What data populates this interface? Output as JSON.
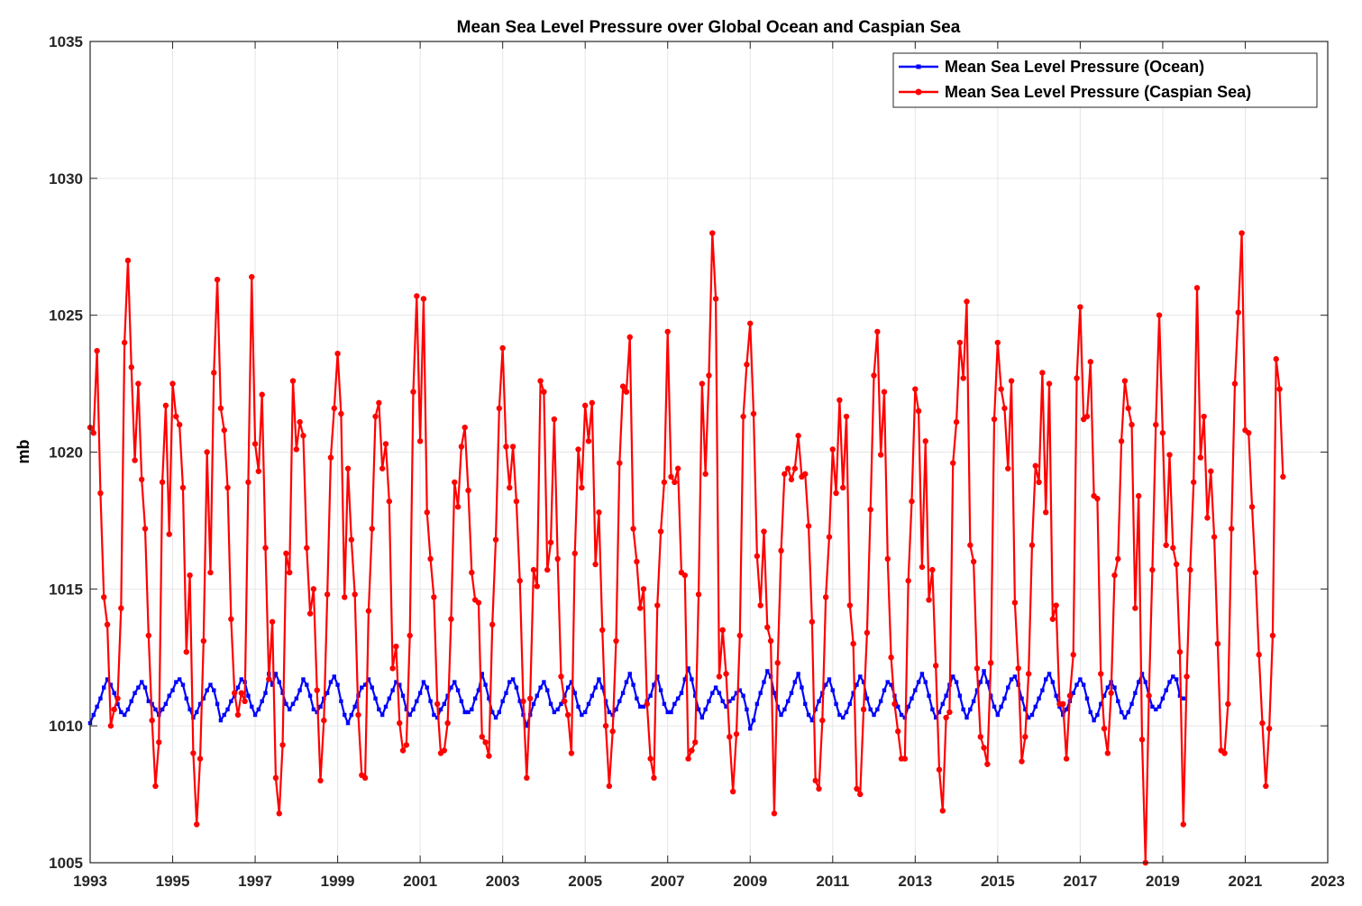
{
  "chart_data": {
    "type": "line",
    "title": "Mean Sea Level Pressure over Global Ocean and Caspian Sea",
    "xlabel": "",
    "ylabel": "mb",
    "xlim": [
      1993,
      2023
    ],
    "ylim": [
      1005,
      1035
    ],
    "xticks": [
      "1993",
      "1995",
      "1997",
      "1999",
      "2001",
      "2003",
      "2005",
      "2007",
      "2009",
      "2011",
      "2013",
      "2015",
      "2017",
      "2019",
      "2021",
      "2023"
    ],
    "yticks": [
      "1005",
      "1010",
      "1015",
      "1020",
      "1025",
      "1030",
      "1035"
    ],
    "grid": true,
    "legend_position": "top-right",
    "series": [
      {
        "name": "Mean Sea Level Pressure (Ocean)",
        "color": "#0000ff",
        "marker": "square",
        "start": 1993.0,
        "step": 0.08333,
        "values": [
          1010.1,
          1010.4,
          1010.7,
          1011.0,
          1011.4,
          1011.7,
          1011.5,
          1011.2,
          1010.8,
          1010.5,
          1010.4,
          1010.6,
          1010.9,
          1011.2,
          1011.4,
          1011.6,
          1011.4,
          1010.9,
          1010.8,
          1010.6,
          1010.4,
          1010.6,
          1010.8,
          1011.1,
          1011.3,
          1011.6,
          1011.7,
          1011.5,
          1011.0,
          1010.6,
          1010.3,
          1010.5,
          1010.8,
          1011.0,
          1011.3,
          1011.5,
          1011.3,
          1010.8,
          1010.2,
          1010.4,
          1010.6,
          1010.9,
          1011.1,
          1011.4,
          1011.7,
          1011.6,
          1011.1,
          1010.7,
          1010.4,
          1010.6,
          1010.9,
          1011.2,
          1011.9,
          1011.5,
          1011.9,
          1011.6,
          1011.2,
          1010.8,
          1010.6,
          1010.8,
          1011.0,
          1011.3,
          1011.7,
          1011.5,
          1011.1,
          1010.6,
          1010.5,
          1010.7,
          1011.0,
          1011.2,
          1011.6,
          1011.8,
          1011.5,
          1010.9,
          1010.4,
          1010.1,
          1010.4,
          1010.7,
          1011.1,
          1011.4,
          1011.5,
          1011.7,
          1011.4,
          1011.0,
          1010.6,
          1010.4,
          1010.7,
          1011.0,
          1011.3,
          1011.6,
          1011.5,
          1011.1,
          1010.6,
          1010.4,
          1010.6,
          1010.9,
          1011.2,
          1011.6,
          1011.4,
          1010.9,
          1010.4,
          1010.3,
          1010.6,
          1010.8,
          1011.1,
          1011.4,
          1011.6,
          1011.3,
          1010.9,
          1010.5,
          1010.5,
          1010.6,
          1011.0,
          1011.3,
          1011.9,
          1011.5,
          1011.0,
          1010.5,
          1010.3,
          1010.5,
          1010.9,
          1011.2,
          1011.6,
          1011.7,
          1011.4,
          1010.9,
          1010.4,
          1010.0,
          1010.4,
          1010.8,
          1011.1,
          1011.4,
          1011.6,
          1011.3,
          1010.8,
          1010.5,
          1010.6,
          1010.8,
          1011.1,
          1011.4,
          1011.6,
          1011.2,
          1010.7,
          1010.4,
          1010.5,
          1010.8,
          1011.1,
          1011.4,
          1011.7,
          1011.4,
          1010.9,
          1010.5,
          1010.4,
          1010.6,
          1010.9,
          1011.2,
          1011.6,
          1011.9,
          1011.5,
          1011.0,
          1010.7,
          1010.7,
          1010.9,
          1011.1,
          1011.5,
          1011.8,
          1011.3,
          1010.8,
          1010.5,
          1010.5,
          1010.8,
          1011.0,
          1011.2,
          1011.7,
          1012.1,
          1011.7,
          1011.1,
          1010.6,
          1010.3,
          1010.6,
          1010.9,
          1011.2,
          1011.4,
          1011.2,
          1010.9,
          1010.7,
          1010.9,
          1011.0,
          1011.2,
          1011.3,
          1011.1,
          1010.6,
          1009.9,
          1010.2,
          1010.8,
          1011.2,
          1011.6,
          1012.0,
          1011.8,
          1011.2,
          1010.7,
          1010.4,
          1010.6,
          1010.9,
          1011.2,
          1011.6,
          1011.9,
          1011.4,
          1010.8,
          1010.4,
          1010.2,
          1010.6,
          1010.9,
          1011.2,
          1011.5,
          1011.7,
          1011.3,
          1010.8,
          1010.4,
          1010.3,
          1010.5,
          1010.8,
          1011.2,
          1011.5,
          1011.8,
          1011.6,
          1011.0,
          1010.6,
          1010.4,
          1010.6,
          1010.9,
          1011.3,
          1011.6,
          1011.5,
          1011.1,
          1010.7,
          1010.4,
          1010.3,
          1010.7,
          1011.0,
          1011.3,
          1011.6,
          1011.9,
          1011.6,
          1011.1,
          1010.6,
          1010.3,
          1010.5,
          1010.8,
          1011.1,
          1011.5,
          1011.8,
          1011.6,
          1011.1,
          1010.6,
          1010.3,
          1010.6,
          1010.9,
          1011.3,
          1011.6,
          1012.0,
          1011.6,
          1011.1,
          1010.7,
          1010.4,
          1010.7,
          1011.0,
          1011.4,
          1011.7,
          1011.8,
          1011.5,
          1011.0,
          1010.6,
          1010.3,
          1010.4,
          1010.7,
          1011.0,
          1011.3,
          1011.7,
          1011.9,
          1011.6,
          1011.1,
          1010.7,
          1010.4,
          1010.6,
          1010.9,
          1011.2,
          1011.5,
          1011.7,
          1011.5,
          1011.0,
          1010.5,
          1010.2,
          1010.4,
          1010.8,
          1011.1,
          1011.4,
          1011.6,
          1011.4,
          1010.9,
          1010.5,
          1010.3,
          1010.5,
          1010.8,
          1011.2,
          1011.6,
          1011.9,
          1011.6,
          1011.1,
          1010.7,
          1010.6,
          1010.7,
          1011.0,
          1011.3,
          1011.6,
          1011.8,
          1011.7,
          1011.1,
          1011.0
        ]
      },
      {
        "name": "Mean Sea Level Pressure (Caspian Sea)",
        "color": "#ff0000",
        "marker": "circle",
        "start": 1993.0,
        "step": 0.08333,
        "values": [
          1020.9,
          1020.7,
          1023.7,
          1018.5,
          1014.7,
          1013.7,
          1010.0,
          1010.6,
          1011.0,
          1014.3,
          1024.0,
          1027.0,
          1023.1,
          1019.7,
          1022.5,
          1019.0,
          1017.2,
          1013.3,
          1010.2,
          1007.8,
          1009.4,
          1018.9,
          1021.7,
          1017.0,
          1022.5,
          1021.3,
          1021.0,
          1018.7,
          1012.7,
          1015.5,
          1009.0,
          1006.4,
          1008.8,
          1013.1,
          1020.0,
          1015.6,
          1022.9,
          1026.3,
          1021.6,
          1020.8,
          1018.7,
          1013.9,
          1011.2,
          1010.4,
          1011.2,
          1010.9,
          1018.9,
          1026.4,
          1020.3,
          1019.3,
          1022.1,
          1016.5,
          1011.7,
          1013.8,
          1008.1,
          1006.8,
          1009.3,
          1016.3,
          1015.6,
          1022.6,
          1020.1,
          1021.1,
          1020.6,
          1016.5,
          1014.1,
          1015.0,
          1011.3,
          1008.0,
          1010.2,
          1014.8,
          1019.8,
          1021.6,
          1023.6,
          1021.4,
          1014.7,
          1019.4,
          1016.8,
          1014.8,
          1010.4,
          1008.2,
          1008.1,
          1014.2,
          1017.2,
          1021.3,
          1021.8,
          1019.4,
          1020.3,
          1018.2,
          1012.1,
          1012.9,
          1010.1,
          1009.1,
          1009.3,
          1013.3,
          1022.2,
          1025.7,
          1020.4,
          1025.6,
          1017.8,
          1016.1,
          1014.7,
          1010.8,
          1009.0,
          1009.1,
          1010.1,
          1013.9,
          1018.9,
          1018.0,
          1020.2,
          1020.9,
          1018.6,
          1015.6,
          1014.6,
          1014.5,
          1009.6,
          1009.4,
          1008.9,
          1013.7,
          1016.8,
          1021.6,
          1023.8,
          1020.2,
          1018.7,
          1020.2,
          1018.2,
          1015.3,
          1010.9,
          1008.1,
          1011.0,
          1015.7,
          1015.1,
          1022.6,
          1022.2,
          1015.7,
          1016.7,
          1021.2,
          1016.1,
          1011.8,
          1010.9,
          1010.4,
          1009.0,
          1016.3,
          1020.1,
          1018.7,
          1021.7,
          1020.4,
          1021.8,
          1015.9,
          1017.8,
          1013.5,
          1010.0,
          1007.8,
          1009.8,
          1013.1,
          1019.6,
          1022.4,
          1022.2,
          1024.2,
          1017.2,
          1016.0,
          1014.3,
          1015.0,
          1010.8,
          1008.8,
          1008.1,
          1014.4,
          1017.1,
          1018.9,
          1024.4,
          1019.1,
          1018.9,
          1019.4,
          1015.6,
          1015.5,
          1008.8,
          1009.1,
          1009.4,
          1014.8,
          1022.5,
          1019.2,
          1022.8,
          1028.0,
          1025.6,
          1011.8,
          1013.5,
          1011.9,
          1009.6,
          1007.6,
          1009.7,
          1013.3,
          1021.3,
          1023.2,
          1024.7,
          1021.4,
          1016.2,
          1014.4,
          1017.1,
          1013.6,
          1013.1,
          1006.8,
          1012.3,
          1016.4,
          1019.2,
          1019.4,
          1019.0,
          1019.4,
          1020.6,
          1019.1,
          1019.2,
          1017.3,
          1013.8,
          1008.0,
          1007.7,
          1010.2,
          1014.7,
          1016.9,
          1020.1,
          1018.5,
          1021.9,
          1018.7,
          1021.3,
          1014.4,
          1013.0,
          1007.7,
          1007.5,
          1010.6,
          1013.4,
          1017.9,
          1022.8,
          1024.4,
          1019.9,
          1022.2,
          1016.1,
          1012.5,
          1010.8,
          1009.8,
          1008.8,
          1008.8,
          1015.3,
          1018.2,
          1022.3,
          1021.5,
          1015.8,
          1020.4,
          1014.6,
          1015.7,
          1012.2,
          1008.4,
          1006.9,
          1010.3,
          1010.5,
          1019.6,
          1021.1,
          1024.0,
          1022.7,
          1025.5,
          1016.6,
          1016.0,
          1012.1,
          1009.6,
          1009.2,
          1008.6,
          1012.3,
          1021.2,
          1024.0,
          1022.3,
          1021.6,
          1019.4,
          1022.6,
          1014.5,
          1012.1,
          1008.7,
          1009.6,
          1011.9,
          1016.6,
          1019.5,
          1018.9,
          1022.9,
          1017.8,
          1022.5,
          1013.9,
          1014.4,
          1010.8,
          1010.8,
          1008.8,
          1011.1,
          1012.6,
          1022.7,
          1025.3,
          1021.2,
          1021.3,
          1023.3,
          1018.4,
          1018.3,
          1011.9,
          1009.9,
          1009.0,
          1011.2,
          1015.5,
          1016.1,
          1020.4,
          1022.6,
          1021.6,
          1021.0,
          1014.3,
          1018.4,
          1009.5,
          1005.0,
          1011.1,
          1015.7,
          1021.0,
          1025.0,
          1020.7,
          1016.6,
          1019.9,
          1016.5,
          1015.9,
          1012.7,
          1006.4,
          1011.8,
          1015.7,
          1018.9,
          1026.0,
          1019.8,
          1021.3,
          1017.6,
          1019.3,
          1016.9,
          1013.0,
          1009.1,
          1009.0,
          1010.8,
          1017.2,
          1022.5,
          1025.1,
          1028.0,
          1020.8,
          1020.7,
          1018.0,
          1015.6,
          1012.6,
          1010.1,
          1007.8,
          1009.9,
          1013.3,
          1023.4,
          1022.3,
          1019.1
        ]
      }
    ]
  }
}
